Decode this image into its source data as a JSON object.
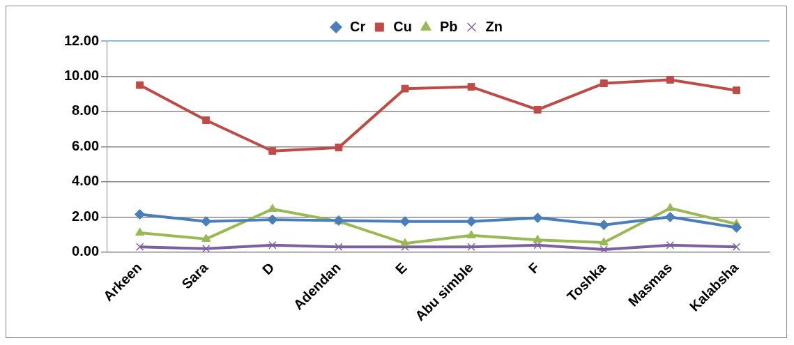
{
  "chart_data": {
    "type": "line",
    "categories": [
      "Arkeen",
      "Sara",
      "D",
      "Adendan",
      "E",
      "Abu simble",
      "F",
      "Toshka",
      "Masmas",
      "Kalabsha"
    ],
    "series": [
      {
        "name": "Cr",
        "color": "#4a7ebb",
        "marker": "diamond",
        "values": [
          2.15,
          1.75,
          1.85,
          1.8,
          1.75,
          1.75,
          1.95,
          1.55,
          2.0,
          1.4
        ]
      },
      {
        "name": "Cu",
        "color": "#be4b48",
        "marker": "square",
        "values": [
          9.5,
          7.5,
          5.75,
          5.95,
          9.3,
          9.4,
          8.1,
          9.6,
          9.8,
          9.2
        ]
      },
      {
        "name": "Pb",
        "color": "#98b954",
        "marker": "triangle",
        "values": [
          1.1,
          0.75,
          2.45,
          1.75,
          0.5,
          0.95,
          0.7,
          0.55,
          2.5,
          1.6
        ]
      },
      {
        "name": "Zn",
        "color": "#7d60a0",
        "marker": "cross",
        "values": [
          0.3,
          0.2,
          0.4,
          0.3,
          0.3,
          0.3,
          0.4,
          0.15,
          0.4,
          0.3
        ]
      }
    ],
    "ylim": [
      0,
      12
    ],
    "yticks": [
      {
        "value": 0,
        "label": "0.00"
      },
      {
        "value": 2,
        "label": "2.00"
      },
      {
        "value": 4,
        "label": "4.00"
      },
      {
        "value": 6,
        "label": "6.00"
      },
      {
        "value": 8,
        "label": "8.00"
      },
      {
        "value": 10,
        "label": "10.00"
      },
      {
        "value": 12,
        "label": "12.00"
      }
    ],
    "grid": "y",
    "legend": "top"
  }
}
